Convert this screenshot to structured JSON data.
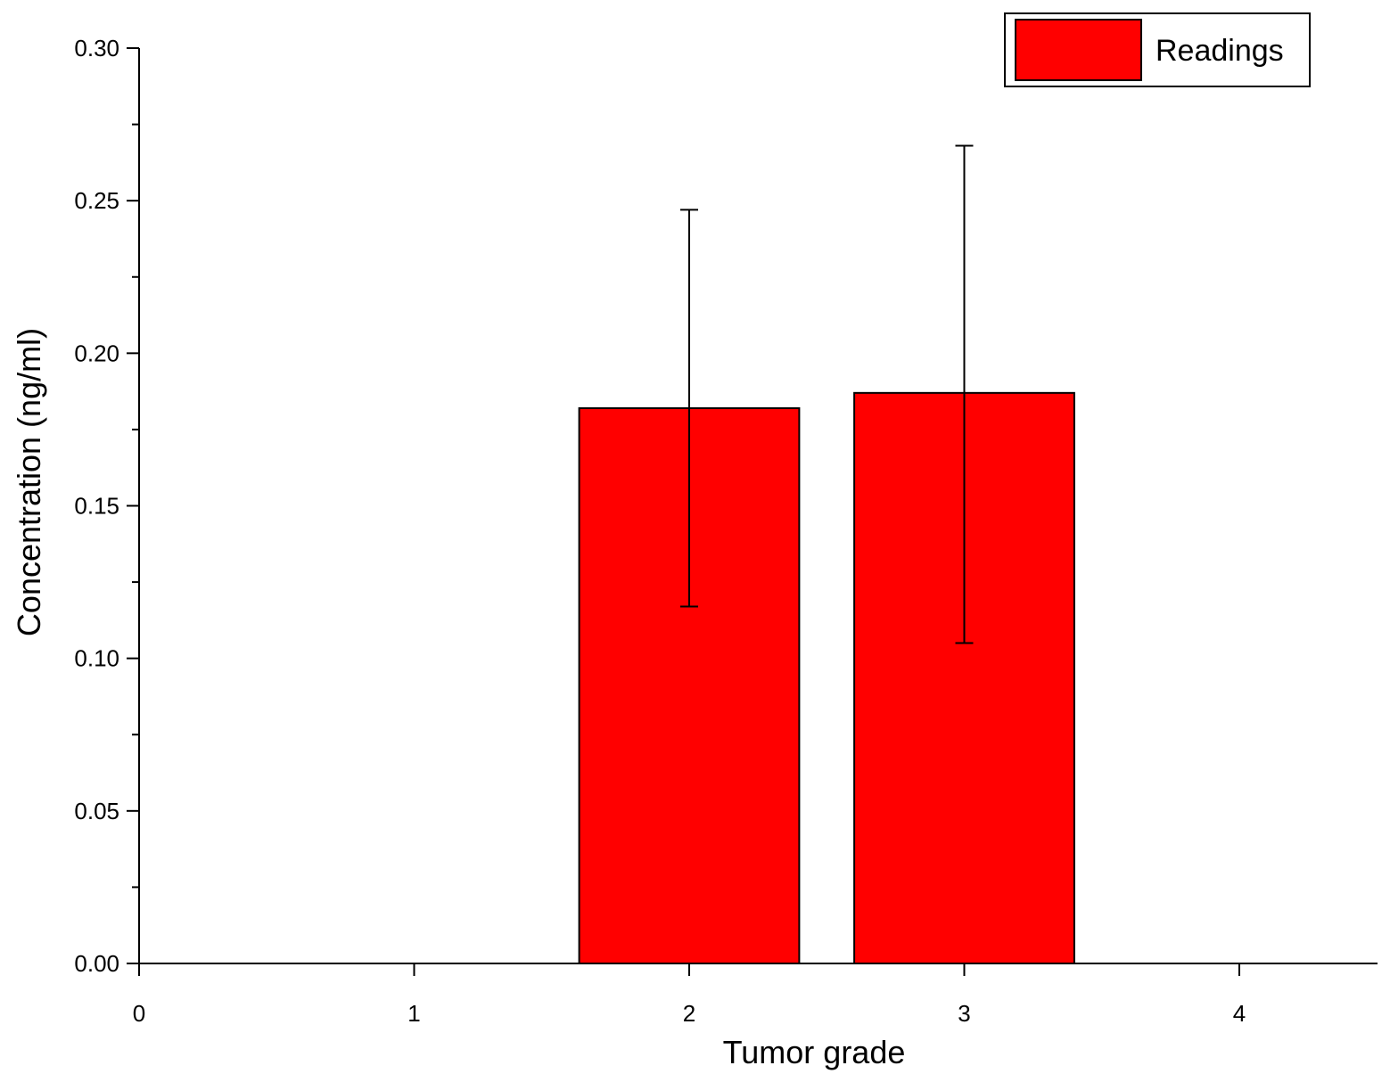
{
  "chart_data": {
    "type": "bar",
    "title": "",
    "xlabel": "Tumor grade",
    "ylabel": "Concentration (ng/ml)",
    "xlim": [
      0,
      4.5
    ],
    "ylim": [
      0,
      0.3
    ],
    "x_ticks": [
      "0",
      "1",
      "2",
      "3",
      "4"
    ],
    "y_ticks": [
      "0.00",
      "0.05",
      "0.10",
      "0.15",
      "0.20",
      "0.25",
      "0.30"
    ],
    "grid": false,
    "legend_position": "top-right",
    "series": [
      {
        "name": "Readings",
        "color": "#ff0000",
        "x": [
          2,
          3
        ],
        "values": [
          0.182,
          0.187
        ],
        "error_low": [
          0.117,
          0.105
        ],
        "error_high": [
          0.247,
          0.268
        ]
      }
    ]
  }
}
